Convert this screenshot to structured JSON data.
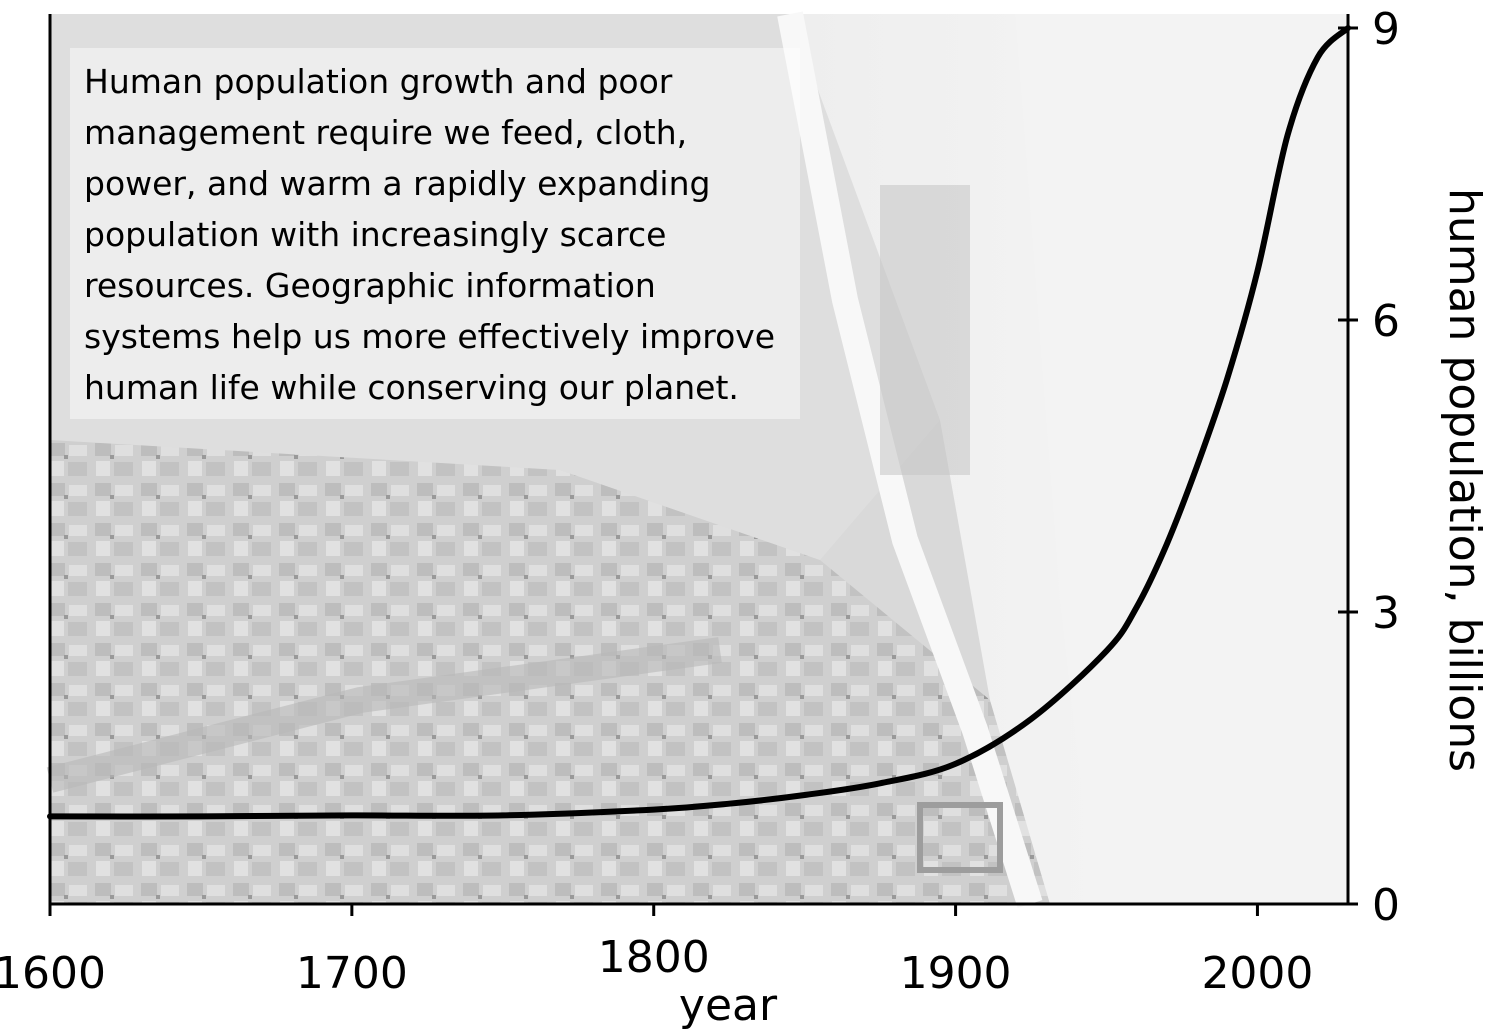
{
  "annotation": "Human population growth and poor management require we feed, cloth, power, and warm a rapidly expanding population with increasingly scarce resources.  Geographic information systems help us more effectively improve human life while conserving our planet.",
  "chart_data": {
    "type": "line",
    "title": "",
    "xlabel": "year",
    "ylabel": "human population, billions",
    "xlim": [
      1600,
      2030
    ],
    "ylim": [
      0,
      9
    ],
    "x_ticks": [
      1600,
      1700,
      1800,
      1900,
      2000
    ],
    "y_ticks": [
      0,
      3,
      6,
      9
    ],
    "y_axis_side": "right",
    "grid": false,
    "background": "grayscale aerial image of a settlement and sand dunes",
    "line_color": "#000000",
    "series": [
      {
        "x": [
          1600,
          1650,
          1700,
          1750,
          1800,
          1825,
          1850,
          1875,
          1900,
          1925,
          1950,
          1960,
          1970,
          1980,
          1990,
          2000,
          2010,
          2020,
          2030
        ],
        "y": [
          0.9,
          0.9,
          0.91,
          0.91,
          0.97,
          1.03,
          1.12,
          1.24,
          1.44,
          1.9,
          2.6,
          3.05,
          3.7,
          4.5,
          5.4,
          6.5,
          7.9,
          8.7,
          9.0
        ]
      }
    ]
  }
}
